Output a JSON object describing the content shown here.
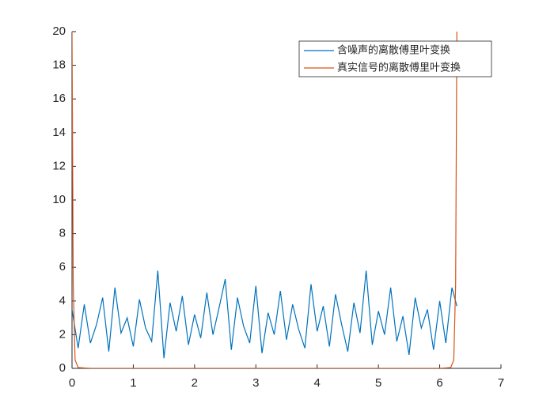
{
  "chart_data": {
    "type": "line",
    "series": [
      {
        "name": "含噪声的离散傅里叶变换",
        "color": "#0072bd",
        "x": [
          0,
          0.1,
          0.2,
          0.3,
          0.4,
          0.5,
          0.6,
          0.7,
          0.8,
          0.9,
          1.0,
          1.1,
          1.2,
          1.3,
          1.4,
          1.5,
          1.6,
          1.7,
          1.8,
          1.9,
          2.0,
          2.1,
          2.2,
          2.3,
          2.4,
          2.5,
          2.6,
          2.7,
          2.8,
          2.9,
          3.0,
          3.1,
          3.2,
          3.3,
          3.4,
          3.5,
          3.6,
          3.7,
          3.8,
          3.9,
          4.0,
          4.1,
          4.2,
          4.3,
          4.4,
          4.5,
          4.6,
          4.7,
          4.8,
          4.9,
          5.0,
          5.1,
          5.2,
          5.3,
          5.4,
          5.5,
          5.6,
          5.7,
          5.8,
          5.9,
          6.0,
          6.1,
          6.2,
          6.28
        ],
        "values": [
          3.5,
          1.2,
          3.8,
          1.5,
          2.6,
          4.2,
          1.0,
          4.8,
          2.1,
          3.0,
          1.3,
          4.1,
          2.4,
          1.6,
          5.8,
          0.6,
          3.9,
          2.2,
          4.3,
          1.4,
          3.2,
          1.8,
          4.5,
          2.0,
          3.6,
          5.3,
          1.1,
          4.2,
          2.5,
          1.5,
          4.9,
          0.9,
          3.3,
          2.0,
          4.6,
          1.7,
          3.8,
          2.3,
          1.2,
          5.0,
          2.2,
          3.7,
          1.3,
          4.4,
          2.6,
          1.0,
          3.9,
          2.1,
          5.8,
          1.4,
          3.4,
          2.0,
          4.8,
          1.6,
          3.1,
          0.8,
          4.2,
          2.4,
          3.5,
          1.1,
          4.0,
          1.5,
          4.8,
          3.7
        ]
      },
      {
        "name": "真实信号的离散傅里叶变换",
        "color": "#d95319",
        "x": [
          0,
          0.02,
          0.05,
          0.1,
          0.3,
          6.0,
          6.18,
          6.23,
          6.26,
          6.28
        ],
        "values": [
          20,
          5,
          0.5,
          0.05,
          0,
          0,
          0.05,
          0.5,
          5,
          20
        ]
      }
    ],
    "xlim": [
      0,
      7
    ],
    "xticks": [
      0,
      1,
      2,
      3,
      4,
      5,
      6,
      7
    ],
    "ylim": [
      0,
      20
    ],
    "yticks": [
      0,
      2,
      4,
      6,
      8,
      10,
      12,
      14,
      16,
      18,
      20
    ],
    "legend": "upper-right"
  }
}
